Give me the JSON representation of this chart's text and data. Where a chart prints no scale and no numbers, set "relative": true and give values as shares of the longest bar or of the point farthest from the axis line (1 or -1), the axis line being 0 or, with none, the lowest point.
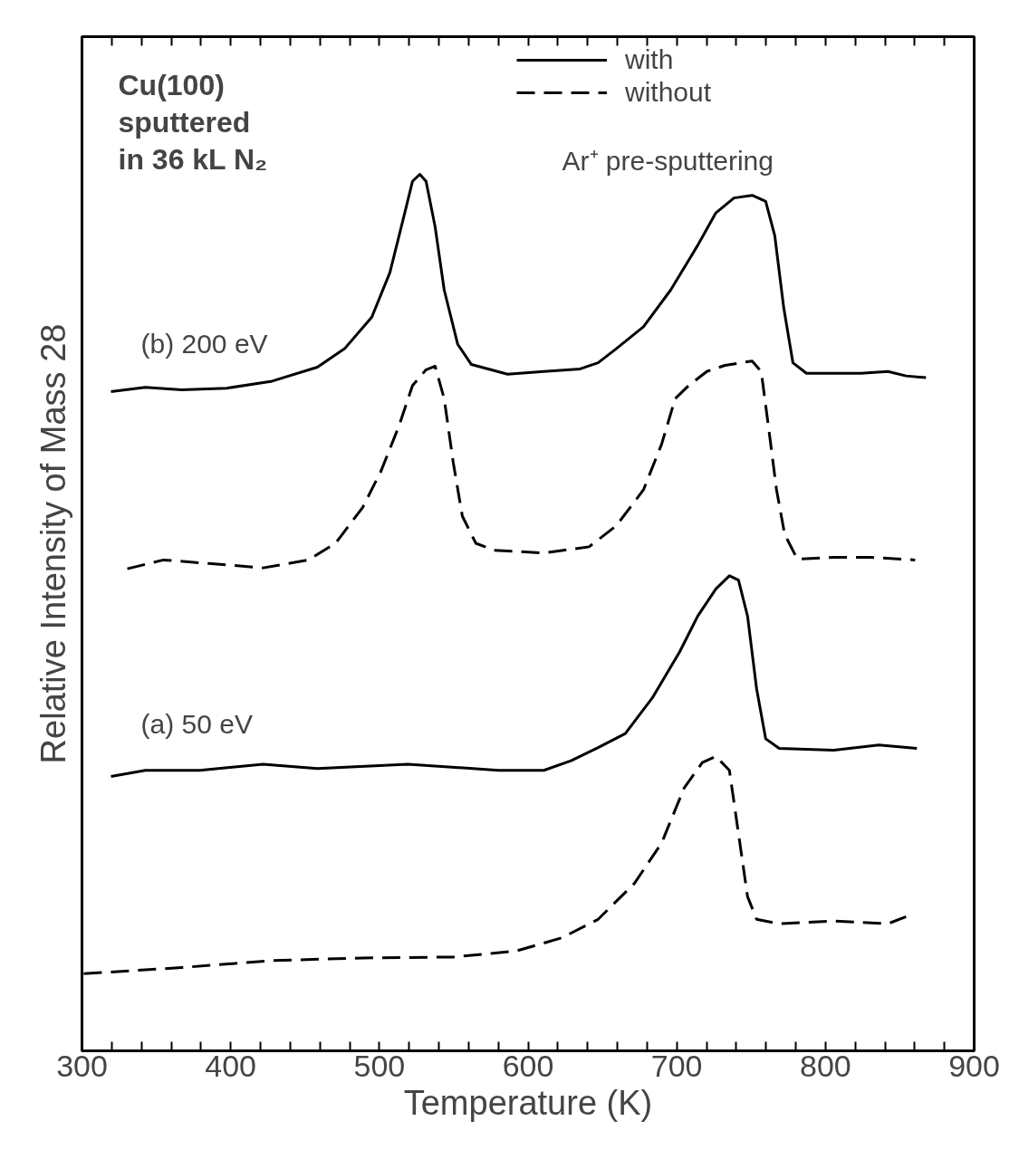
{
  "chart_data": {
    "type": "line",
    "relative": true,
    "xlabel": "Temperature (K)",
    "ylabel": "Relative Intensity of Mass 28",
    "xlim": [
      300,
      900
    ],
    "xticks": [
      300,
      {
        "value": 320,
        "label": null
      },
      {
        "value": 340,
        "label": null
      },
      {
        "value": 360,
        "label": null
      },
      {
        "value": 380,
        "label": null
      },
      400,
      {
        "value": 420,
        "label": null
      },
      {
        "value": 440,
        "label": null
      },
      {
        "value": 460,
        "label": null
      },
      {
        "value": 480,
        "label": null
      },
      500,
      {
        "value": 520,
        "label": null
      },
      {
        "value": 540,
        "label": null
      },
      {
        "value": 560,
        "label": null
      },
      {
        "value": 580,
        "label": null
      },
      600,
      {
        "value": 620,
        "label": null
      },
      {
        "value": 640,
        "label": null
      },
      {
        "value": 660,
        "label": null
      },
      {
        "value": 680,
        "label": null
      },
      700,
      {
        "value": 720,
        "label": null
      },
      {
        "value": 740,
        "label": null
      },
      {
        "value": 760,
        "label": null
      },
      {
        "value": 780,
        "label": null
      },
      800,
      {
        "value": 820,
        "label": null
      },
      {
        "value": 840,
        "label": null
      },
      {
        "value": 860,
        "label": null
      },
      {
        "value": 880,
        "label": null
      },
      900
    ],
    "tick_labels": "x",
    "grid": false,
    "legend": "top right",
    "series": [
      {
        "name": "with",
        "color": "#000000",
        "line_style": "solid",
        "x": [
          319.5,
          342.6,
          367.0,
          397.4,
          427.9,
          458.3,
          476.6,
          494.9,
          507.1,
          516.2,
          522.3,
          527.2,
          531.4,
          537.5,
          543.6,
          552.7,
          561.9,
          586.2,
          610.6,
          635.0,
          647.1,
          659.3,
          677.6,
          695.9,
          714.1,
          726.3,
          738.5,
          750.7,
          759.8,
          765.9,
          772.0,
          778.1,
          787.2,
          823.8,
          842.0,
          854.2,
          867.6
        ],
        "values": [
          0.752,
          0.757,
          0.754,
          0.756,
          0.764,
          0.78,
          0.801,
          0.837,
          0.888,
          0.95,
          0.992,
          1.0,
          0.992,
          0.94,
          0.868,
          0.806,
          0.783,
          0.772,
          0.775,
          0.778,
          0.785,
          0.801,
          0.826,
          0.868,
          0.919,
          0.956,
          0.973,
          0.976,
          0.969,
          0.93,
          0.847,
          0.785,
          0.773,
          0.773,
          0.775,
          0.77,
          0.768
        ]
      },
      {
        "name": "without",
        "color": "#000000",
        "line_style": "dashed",
        "x": [
          330.5,
          354.8,
          385.3,
          421.8,
          452.3,
          470.5,
          488.8,
          501.0,
          513.2,
          522.3,
          531.4,
          537.5,
          543.6,
          549.7,
          555.8,
          564.9,
          577.1,
          610.6,
          641.0,
          659.3,
          677.6,
          689.8,
          698.9,
          708.0,
          720.2,
          732.4,
          750.7,
          756.8,
          761.6,
          767.1,
          772.6,
          781.1,
          805.5,
          829.8,
          860.3
        ],
        "values": [
          0.55,
          0.56,
          0.556,
          0.551,
          0.56,
          0.579,
          0.62,
          0.661,
          0.713,
          0.759,
          0.777,
          0.781,
          0.744,
          0.671,
          0.61,
          0.579,
          0.571,
          0.568,
          0.575,
          0.599,
          0.64,
          0.692,
          0.744,
          0.759,
          0.775,
          0.782,
          0.787,
          0.775,
          0.713,
          0.64,
          0.589,
          0.561,
          0.563,
          0.563,
          0.56
        ]
      },
      {
        "color": "#000000",
        "line_style": "solid",
        "x": [
          319.5,
          342.6,
          379.2,
          421.8,
          458.3,
          519.2,
          580.1,
          610.6,
          628.9,
          647.1,
          665.4,
          683.7,
          701.9,
          714.1,
          726.3,
          735.4,
          741.5,
          747.6,
          753.7,
          759.8,
          768.9,
          805.5,
          835.9,
          861.5
        ],
        "values": [
          0.313,
          0.32,
          0.32,
          0.327,
          0.322,
          0.327,
          0.32,
          0.32,
          0.331,
          0.346,
          0.362,
          0.403,
          0.455,
          0.496,
          0.527,
          0.542,
          0.537,
          0.496,
          0.413,
          0.356,
          0.345,
          0.343,
          0.349,
          0.345
        ]
      },
      {
        "color": "#000000",
        "line_style": "dashed",
        "x": [
          301.2,
          367.0,
          427.9,
          488.8,
          549.7,
          592.3,
          622.8,
          647.1,
          671.5,
          689.8,
          705.0,
          717.2,
          726.3,
          735.4,
          741.5,
          747.6,
          753.7,
          768.9,
          805.5,
          842.0,
          854.2
        ],
        "values": [
          0.088,
          0.095,
          0.103,
          0.106,
          0.107,
          0.114,
          0.129,
          0.15,
          0.191,
          0.237,
          0.3,
          0.329,
          0.336,
          0.32,
          0.248,
          0.176,
          0.15,
          0.145,
          0.148,
          0.145,
          0.153
        ]
      }
    ],
    "annotations": [
      "Cu(100)\nsputtered\nin 36 kL N₂",
      "Ar⁺ pre-sputtering",
      "(b) 200 eV",
      "(a) 50 eV"
    ]
  }
}
